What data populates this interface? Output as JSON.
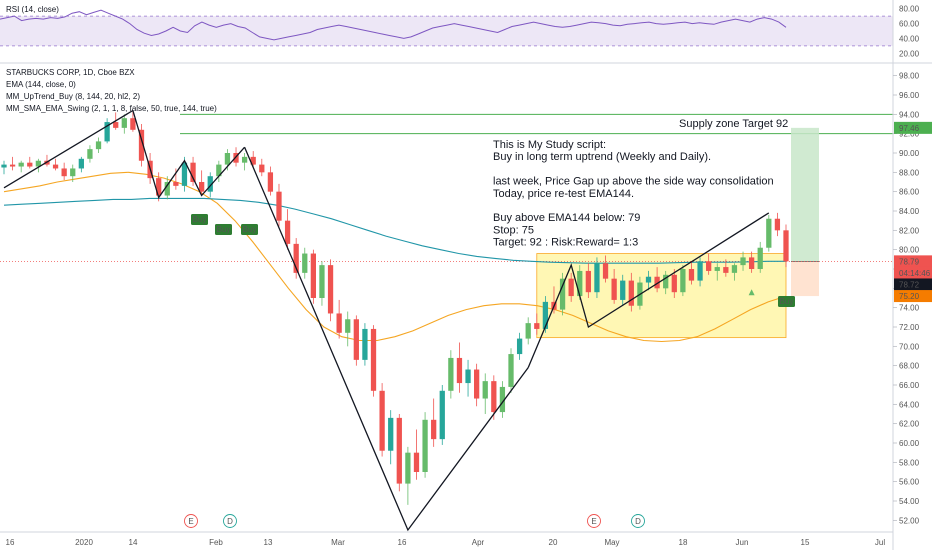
{
  "rsi": {
    "label": "RSI (14, close)",
    "ticks": [
      "80.00",
      "60.00",
      "40.00",
      "20.00"
    ],
    "tick_values": [
      80,
      60,
      40,
      20
    ],
    "band": [
      30,
      70
    ],
    "values": [
      66,
      68,
      70,
      64,
      66,
      67,
      66,
      68,
      67,
      69,
      74,
      76,
      72,
      75,
      78,
      74,
      70,
      66,
      60,
      52,
      47,
      44,
      46,
      50,
      55,
      50,
      48,
      57,
      62,
      58,
      55,
      58,
      60,
      56,
      54,
      48,
      42,
      40,
      38,
      40,
      42,
      44,
      46,
      48,
      52,
      54,
      56,
      58,
      56,
      54,
      52,
      50,
      48,
      46,
      44,
      42,
      40,
      42,
      46,
      50,
      54,
      56,
      58,
      60,
      58,
      56,
      54,
      52,
      50,
      48,
      52,
      56,
      58,
      60,
      62,
      60,
      58,
      56,
      55,
      56,
      58,
      60,
      62,
      61,
      60,
      58,
      57,
      59,
      60,
      61,
      62,
      60,
      59,
      60,
      61,
      62,
      60,
      61,
      60,
      59,
      62,
      64,
      66,
      64,
      62,
      66,
      68,
      66,
      62,
      55
    ]
  },
  "header": {
    "symbol": "STARBUCKS CORP, 1D, Cboe BZX",
    "studies": [
      "EMA (144, close, 0)",
      "MM_UpTrend_Buy (8, 144, 20, hl2, 2)",
      "MM_SMA_EMA_Swing (2, 1, 1, 8, false, 50, true, 144, true)"
    ]
  },
  "price_axis": {
    "ticks": [
      "98.00",
      "96.00",
      "94.00",
      "92.00",
      "90.00",
      "88.00",
      "86.00",
      "84.00",
      "82.00",
      "80.00",
      "78.00",
      "76.00",
      "74.00",
      "72.00",
      "70.00",
      "68.00",
      "66.00",
      "64.00",
      "62.00",
      "60.00",
      "58.00",
      "56.00",
      "54.00",
      "52.00"
    ],
    "tick_values": [
      98,
      96,
      94,
      92,
      90,
      88,
      86,
      84,
      82,
      80,
      78,
      76,
      74,
      72,
      70,
      68,
      66,
      64,
      62,
      60,
      58,
      56,
      54,
      52
    ],
    "badges": [
      {
        "text": "97.46",
        "value": 92.6,
        "color": "#4caf50"
      },
      {
        "text": "78.79",
        "value": 78.79,
        "color": "#ef5350"
      },
      {
        "text": "04:14:46",
        "value": 77.6,
        "color": "#ef5350"
      },
      {
        "text": "78.72",
        "value": 76.4,
        "color": "#131722"
      },
      {
        "text": "75.20",
        "value": 75.2,
        "color": "#f57c00"
      }
    ]
  },
  "time_axis": {
    "labels": [
      "16",
      "2020",
      "14",
      "Feb",
      "13",
      "Mar",
      "16",
      "Apr",
      "20",
      "May",
      "18",
      "Jun",
      "15",
      "Jul"
    ]
  },
  "annotations": {
    "supply_label": "Supply zone Target 92",
    "notes": [
      "This is My Study script:",
      "Buy in long term uptrend (Weekly and Daily).",
      "",
      "last week, Price Gap up above the side way consolidation",
      "Today, price re-test EMA144.",
      "",
      "Buy above EMA144 below: 79",
      "Stop: 75",
      "Target: 92 : Risk:Reward= 1:3"
    ],
    "buy_label": "Buy",
    "event_E": "E",
    "event_D": "D"
  },
  "colors": {
    "up": "#26a69a",
    "up_light": "#66bb6a",
    "down": "#ef5350",
    "ema144": "#2196a8",
    "sma50": "#f5a623",
    "rsi_line": "#7e57c2",
    "rsi_band": "#ede7f6",
    "zone_fill": "#fff176",
    "zone_stroke": "#f9a825",
    "target_fill": "#c8e6c9",
    "stop_fill": "#ffe0cc",
    "trend": "#131722",
    "hline": "#4caf50",
    "buy_badge": "#2e7d32"
  },
  "chart_data": {
    "type": "candlestick",
    "title": "STARBUCKS CORP, 1D, Cboe BZX",
    "ylim": [
      51,
      99
    ],
    "candles": [
      [
        88.5,
        89.2,
        87.8,
        88.8
      ],
      [
        88.8,
        89.6,
        88.2,
        88.6
      ],
      [
        88.6,
        89.2,
        88.0,
        89.0
      ],
      [
        89.0,
        89.6,
        88.4,
        88.6
      ],
      [
        88.6,
        89.4,
        88.0,
        89.2
      ],
      [
        89.2,
        89.8,
        88.6,
        88.8
      ],
      [
        88.8,
        89.4,
        88.2,
        88.4
      ],
      [
        88.4,
        89.0,
        87.2,
        87.6
      ],
      [
        87.6,
        88.8,
        87.0,
        88.4
      ],
      [
        88.4,
        89.6,
        88.0,
        89.4
      ],
      [
        89.4,
        90.8,
        89.0,
        90.4
      ],
      [
        90.4,
        91.6,
        90.0,
        91.2
      ],
      [
        91.2,
        93.6,
        91.0,
        93.2
      ],
      [
        93.2,
        94.2,
        92.4,
        92.6
      ],
      [
        92.6,
        94.0,
        92.0,
        93.6
      ],
      [
        93.6,
        94.4,
        92.2,
        92.4
      ],
      [
        92.4,
        93.0,
        88.6,
        89.2
      ],
      [
        89.2,
        90.0,
        86.8,
        87.4
      ],
      [
        87.4,
        88.0,
        85.0,
        85.6
      ],
      [
        85.6,
        87.6,
        85.2,
        87.0
      ],
      [
        87.0,
        88.4,
        86.2,
        86.6
      ],
      [
        86.6,
        89.6,
        86.0,
        89.0
      ],
      [
        89.0,
        89.6,
        86.6,
        87.0
      ],
      [
        87.0,
        88.2,
        85.6,
        86.0
      ],
      [
        86.0,
        88.0,
        85.4,
        87.6
      ],
      [
        87.6,
        89.2,
        87.0,
        88.8
      ],
      [
        88.8,
        90.4,
        88.2,
        90.0
      ],
      [
        90.0,
        90.6,
        88.6,
        89.0
      ],
      [
        89.0,
        90.0,
        88.2,
        89.6
      ],
      [
        89.6,
        90.2,
        88.6,
        88.8
      ],
      [
        88.8,
        89.4,
        87.6,
        88.0
      ],
      [
        88.0,
        88.6,
        85.6,
        86.0
      ],
      [
        86.0,
        86.8,
        82.4,
        83.0
      ],
      [
        83.0,
        84.2,
        80.0,
        80.6
      ],
      [
        80.6,
        81.2,
        77.0,
        77.6
      ],
      [
        77.6,
        80.2,
        77.0,
        79.6
      ],
      [
        79.6,
        80.0,
        74.4,
        75.0
      ],
      [
        75.0,
        78.8,
        74.2,
        78.4
      ],
      [
        78.4,
        79.0,
        72.6,
        73.4
      ],
      [
        73.4,
        74.8,
        70.8,
        71.4
      ],
      [
        71.4,
        73.6,
        70.0,
        72.8
      ],
      [
        72.8,
        73.2,
        68.0,
        68.6
      ],
      [
        68.6,
        72.4,
        68.0,
        71.8
      ],
      [
        71.8,
        72.2,
        64.8,
        65.4
      ],
      [
        65.4,
        66.2,
        58.6,
        59.2
      ],
      [
        59.2,
        63.4,
        57.8,
        62.6
      ],
      [
        62.6,
        63.0,
        55.0,
        55.8
      ],
      [
        55.8,
        59.6,
        53.6,
        59.0
      ],
      [
        59.0,
        61.4,
        56.2,
        57.0
      ],
      [
        57.0,
        63.2,
        56.4,
        62.4
      ],
      [
        62.4,
        64.6,
        59.6,
        60.4
      ],
      [
        60.4,
        66.0,
        59.8,
        65.4
      ],
      [
        65.4,
        69.6,
        64.6,
        68.8
      ],
      [
        68.8,
        70.4,
        65.2,
        66.2
      ],
      [
        66.2,
        68.6,
        64.8,
        67.6
      ],
      [
        67.6,
        68.2,
        63.8,
        64.6
      ],
      [
        64.6,
        67.2,
        63.0,
        66.4
      ],
      [
        66.4,
        67.0,
        62.4,
        63.2
      ],
      [
        63.2,
        66.4,
        62.6,
        65.8
      ],
      [
        65.8,
        69.8,
        65.2,
        69.2
      ],
      [
        69.2,
        71.4,
        68.6,
        70.8
      ],
      [
        70.8,
        73.0,
        70.2,
        72.4
      ],
      [
        72.4,
        73.4,
        71.2,
        71.8
      ],
      [
        71.8,
        75.2,
        71.4,
        74.6
      ],
      [
        74.6,
        76.2,
        73.4,
        73.8
      ],
      [
        73.8,
        77.6,
        73.2,
        77.0
      ],
      [
        77.0,
        77.6,
        74.6,
        75.2
      ],
      [
        75.2,
        78.4,
        74.8,
        77.8
      ],
      [
        77.8,
        78.6,
        75.0,
        75.6
      ],
      [
        75.6,
        79.2,
        75.0,
        78.6
      ],
      [
        78.6,
        79.4,
        76.6,
        77.0
      ],
      [
        77.0,
        78.0,
        74.4,
        74.8
      ],
      [
        74.8,
        77.4,
        74.2,
        76.8
      ],
      [
        76.8,
        77.6,
        73.6,
        74.2
      ],
      [
        74.2,
        77.2,
        73.8,
        76.6
      ],
      [
        76.6,
        77.8,
        75.8,
        77.2
      ],
      [
        77.2,
        78.2,
        75.6,
        76.0
      ],
      [
        76.0,
        77.8,
        75.4,
        77.4
      ],
      [
        77.4,
        78.0,
        75.0,
        75.6
      ],
      [
        75.6,
        78.4,
        75.2,
        78.0
      ],
      [
        78.0,
        78.8,
        76.4,
        76.8
      ],
      [
        76.8,
        79.2,
        76.2,
        78.8
      ],
      [
        78.8,
        79.6,
        77.4,
        77.8
      ],
      [
        77.8,
        78.6,
        76.8,
        78.2
      ],
      [
        78.2,
        79.0,
        77.2,
        77.6
      ],
      [
        77.6,
        78.6,
        76.8,
        78.4
      ],
      [
        78.4,
        79.8,
        77.8,
        79.2
      ],
      [
        79.2,
        79.8,
        77.6,
        78.0
      ],
      [
        78.0,
        80.8,
        77.6,
        80.2
      ],
      [
        80.2,
        83.6,
        79.8,
        83.2
      ],
      [
        83.2,
        83.8,
        81.4,
        82.0
      ],
      [
        82.0,
        82.6,
        78.2,
        78.79
      ]
    ],
    "ema144": [
      84.6,
      84.7,
      84.8,
      84.9,
      85.0,
      85.1,
      85.2,
      85.2,
      85.3,
      85.3,
      85.3,
      85.3,
      85.2,
      85.1,
      84.9,
      84.6,
      84.2,
      83.7,
      83.2,
      82.6,
      82.0,
      81.4,
      80.9,
      80.4,
      80.0,
      79.6,
      79.3,
      79.1,
      78.9,
      78.8,
      78.7,
      78.65,
      78.6,
      78.6,
      78.6,
      78.6,
      78.6,
      78.65,
      78.7,
      78.7,
      78.7,
      78.75,
      78.8,
      78.8
    ],
    "sma50": [
      86.0,
      86.3,
      86.6,
      87.0,
      87.3,
      87.6,
      87.9,
      88.0,
      87.8,
      87.4,
      86.8,
      86.0,
      84.8,
      83.0,
      80.8,
      78.4,
      76.0,
      73.8,
      72.0,
      71.0,
      70.6,
      70.6,
      71.0,
      71.6,
      72.4,
      73.2,
      73.8,
      74.2,
      74.4,
      74.4,
      74.2,
      73.8,
      73.2,
      72.4,
      71.6,
      71.0,
      70.6,
      70.5,
      70.6,
      71.0,
      71.8,
      72.8,
      73.8,
      74.6,
      75.2
    ]
  }
}
